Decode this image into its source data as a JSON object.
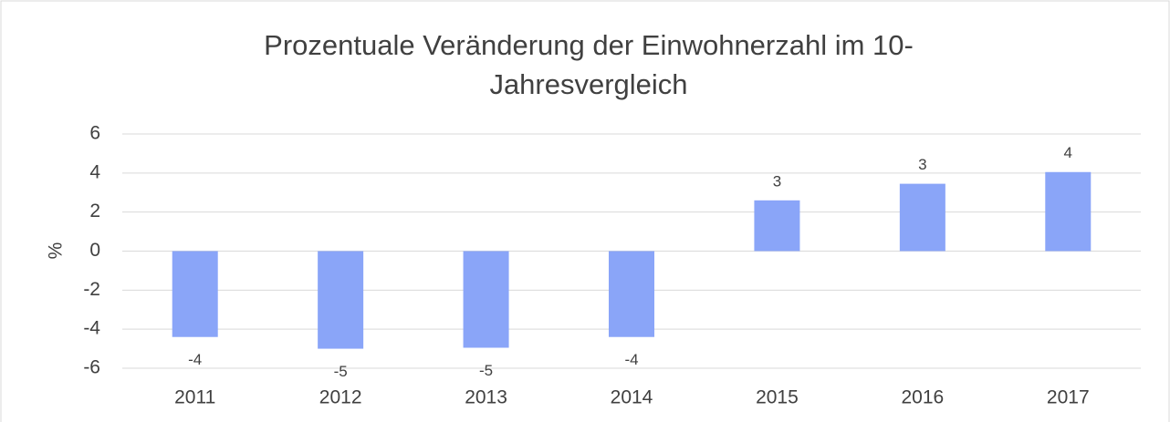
{
  "chart_data": {
    "type": "bar",
    "title": [
      "Prozentuale Veränderung der Einwohnerzahl im 10-",
      "Jahresvergleich"
    ],
    "y_label": "%",
    "categories": [
      "2011",
      "2012",
      "2013",
      "2014",
      "2015",
      "2016",
      "2017"
    ],
    "values": [
      -4.4,
      -5.0,
      -4.95,
      -4.4,
      2.6,
      3.45,
      4.05
    ],
    "value_labels": [
      "-4",
      "-5",
      "-5",
      "-4",
      "3",
      "3",
      "4"
    ],
    "color": "#8aa5f8",
    "ylim": [
      -6,
      6
    ],
    "yticks": [
      -6,
      -4,
      -2,
      0,
      2,
      4,
      6
    ],
    "grid": true
  }
}
